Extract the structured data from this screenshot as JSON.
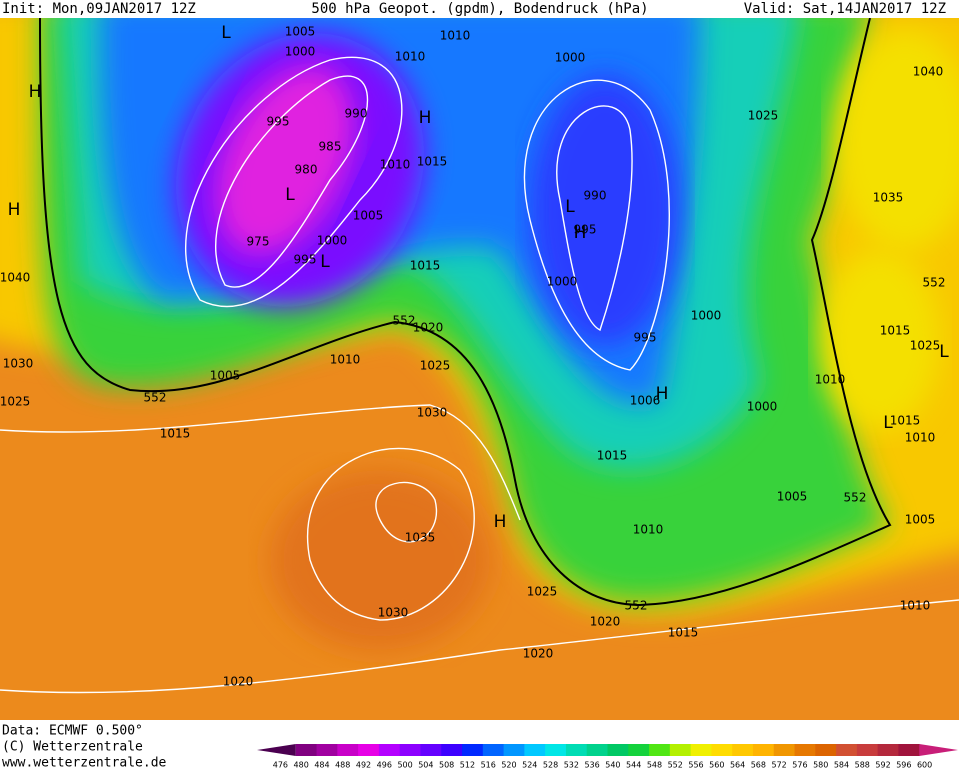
{
  "header": {
    "init": "Init: Mon,09JAN2017 12Z",
    "title": "500 hPa Geopot. (gpdm), Bodendruck (hPa)",
    "valid": "Valid: Sat,14JAN2017 12Z"
  },
  "isobar_labels": [
    1005,
    1000,
    1010,
    1010,
    1000,
    1040,
    995,
    990,
    1025,
    985,
    980,
    1010,
    1015,
    1035,
    990,
    1005,
    995,
    975,
    1000,
    995,
    1015,
    1040,
    1000,
    552,
    1020,
    552,
    995,
    1000,
    1015,
    1025,
    1010,
    1025,
    1030,
    1005,
    1010,
    552,
    1006,
    1000,
    1025,
    1030,
    1015,
    1015,
    1010,
    1015,
    1005,
    552,
    1035,
    1010,
    1005,
    1025,
    552,
    1030,
    1020,
    1015,
    1010,
    1020,
    1020
  ],
  "pressure_centers": [
    "L",
    "H",
    "H",
    "L",
    "L",
    "H",
    "L",
    "H",
    "H",
    "L",
    "L",
    "H"
  ],
  "footer": {
    "data": "Data: ECMWF   0.500°",
    "copyright": "(C) Wetterzentrale",
    "url": "www.wetterzentrale.de"
  },
  "colorbar": {
    "levels": [
      476,
      480,
      484,
      488,
      492,
      496,
      500,
      504,
      508,
      512,
      516,
      520,
      524,
      528,
      532,
      536,
      540,
      544,
      548,
      552,
      556,
      560,
      564,
      568,
      572,
      576,
      580,
      584,
      588,
      592,
      596,
      600
    ],
    "colors": [
      "#4b0050",
      "#800080",
      "#a000a0",
      "#c800c8",
      "#e600e6",
      "#b400ff",
      "#8c00ff",
      "#6400ff",
      "#3c00ff",
      "#0028ff",
      "#0064ff",
      "#0096ff",
      "#00c8ff",
      "#00e6e6",
      "#00dcb4",
      "#00d28c",
      "#00c864",
      "#14d23c",
      "#50e614",
      "#b4f000",
      "#f0f000",
      "#ffdc00",
      "#ffc800",
      "#ffb400",
      "#f09600",
      "#e67800",
      "#dc6400",
      "#d25032",
      "#c83c3c",
      "#b4283c",
      "#a0143c",
      "#c81e78"
    ]
  }
}
